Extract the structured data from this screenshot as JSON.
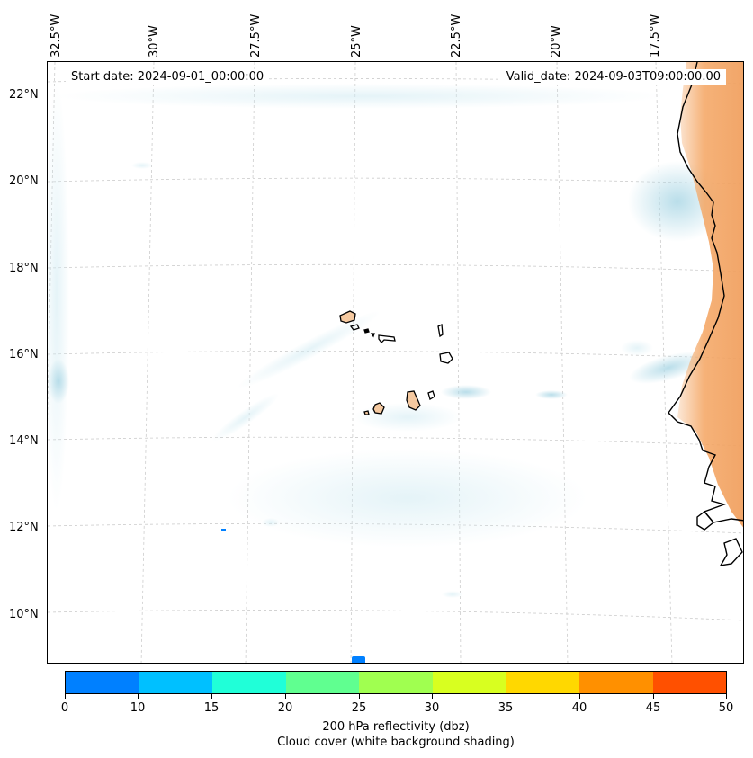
{
  "map": {
    "start_date": "Start date: 2024-09-01_00:00:00",
    "valid_date": "Valid_date: 2024-09-03T09:00:00.00",
    "lon_labels": [
      "32.5°W",
      "30°W",
      "27.5°W",
      "25°W",
      "22.5°W",
      "20°W",
      "17.5°W"
    ],
    "lat_labels": [
      "22°N",
      "20°N",
      "18°N",
      "16°N",
      "14°N",
      "12°N",
      "10°N"
    ],
    "region": "Cabo Verde islands and West African coast",
    "colors": {
      "cloud_shading": "#add8e6",
      "land_cloud": "#f4a460",
      "island_fill": "#f5c9a0",
      "gridline": "#cccccc",
      "coastline": "#000000"
    }
  },
  "colorbar": {
    "ticks": [
      "0",
      "10",
      "15",
      "20",
      "25",
      "30",
      "35",
      "40",
      "45",
      "50"
    ],
    "colors": [
      "#0080ff",
      "#00c0ff",
      "#20ffd8",
      "#60ff90",
      "#a0ff50",
      "#d8ff20",
      "#ffd800",
      "#ff9000",
      "#ff5000"
    ],
    "label_line1": "200 hPa reflectivity (dbz)",
    "label_line2": "Cloud cover (white background shading)"
  }
}
